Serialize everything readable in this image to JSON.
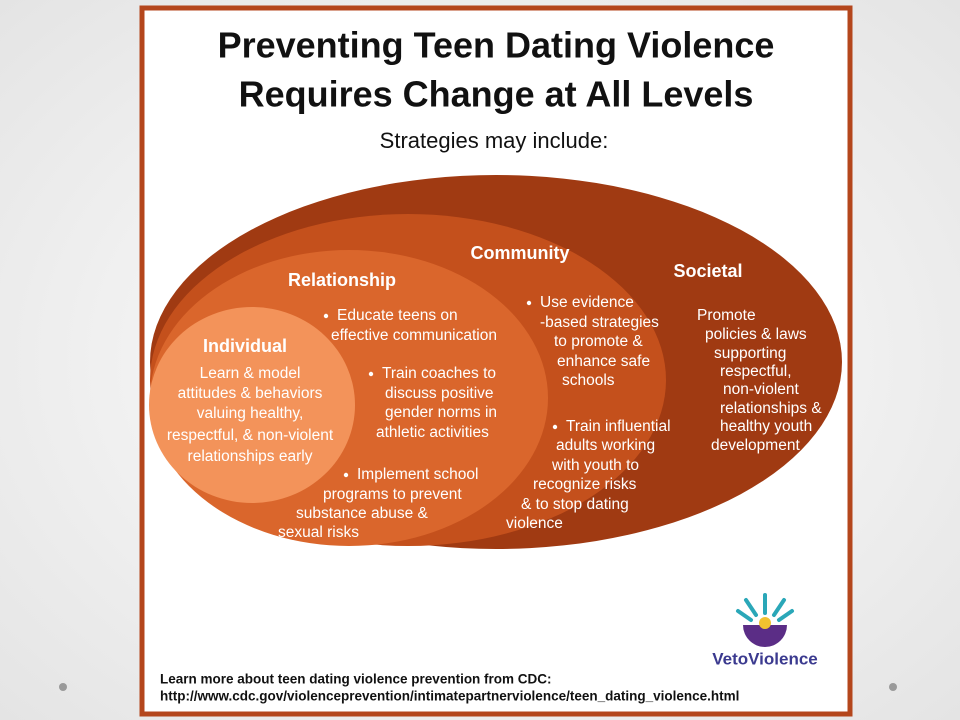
{
  "header": {
    "title_lines": [
      "Preventing Teen Dating Violence",
      "Requires Change at All Levels"
    ],
    "subtitle": "Strategies may include:"
  },
  "levels": [
    {
      "label": "Societal",
      "bulleted": false,
      "items": [
        {
          "lines": [
            "Promote",
            "policies & laws",
            "supporting",
            "respectful,",
            "non-violent",
            "relationships &",
            "healthy youth",
            "development"
          ]
        }
      ]
    },
    {
      "label": "Community",
      "bulleted": true,
      "items": [
        {
          "lines": [
            "Use evidence",
            "-based strategies",
            "to promote &",
            "enhance safe",
            "schools"
          ]
        },
        {
          "lines": [
            "Train influential",
            "adults working",
            "with youth to",
            "recognize risks",
            "& to stop dating",
            "violence"
          ]
        }
      ]
    },
    {
      "label": "Relationship",
      "bulleted": true,
      "items": [
        {
          "lines": [
            "Educate teens on",
            "effective communication"
          ]
        },
        {
          "lines": [
            "Train coaches to",
            "discuss positive",
            "gender norms in",
            "athletic activities"
          ]
        },
        {
          "lines": [
            "Implement school",
            "programs to prevent",
            "substance abuse &",
            "sexual risks"
          ]
        }
      ]
    },
    {
      "label": "Individual",
      "bulleted": false,
      "items": [
        {
          "lines": [
            "Learn & model",
            "attitudes & behaviors",
            "valuing healthy,",
            "respectful, & non-violent",
            "relationships early"
          ]
        }
      ]
    }
  ],
  "logo": {
    "text": "VetoViolence"
  },
  "footer": {
    "text": "Learn more about teen dating violence prevention from CDC:",
    "url": "http://www.cdc.gov/violenceprevention/intimatepartnerviolence/teen_dating_violence.html"
  }
}
